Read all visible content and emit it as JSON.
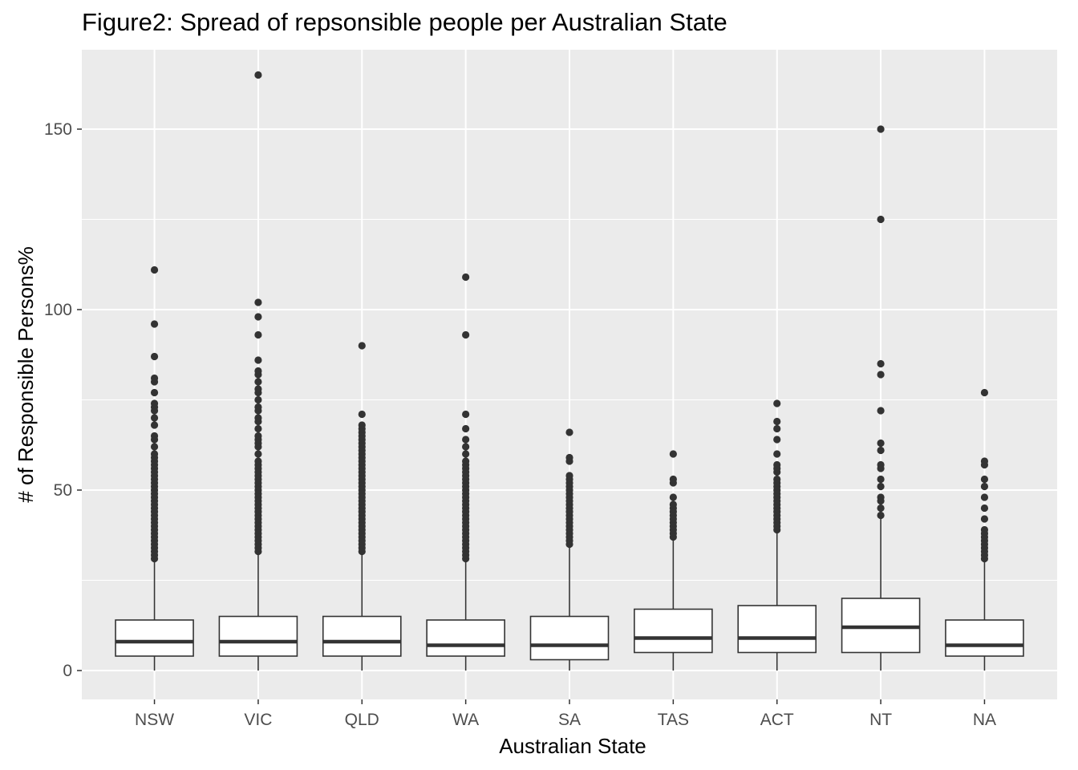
{
  "chart_data": {
    "type": "boxplot",
    "title": "Figure2: Spread of repsonsible people per Australian State",
    "xlabel": "Australian State",
    "ylabel": "# of Responsible Persons%",
    "ylim": [
      -8,
      172
    ],
    "yticks": [
      0,
      50,
      100,
      150
    ],
    "grid": true,
    "legend": "none",
    "categories": [
      "NSW",
      "VIC",
      "QLD",
      "WA",
      "SA",
      "TAS",
      "ACT",
      "NT",
      "NA"
    ],
    "boxes": [
      {
        "category": "NSW",
        "whisker_low": 0,
        "q1": 4,
        "median": 8,
        "q3": 14,
        "whisker_high": 30,
        "outliers": [
          31,
          32,
          33,
          34,
          35,
          36,
          37,
          38,
          39,
          40,
          41,
          42,
          43,
          44,
          45,
          46,
          47,
          48,
          49,
          50,
          51,
          52,
          53,
          54,
          55,
          56,
          57,
          58,
          59,
          60,
          62,
          64,
          65,
          68,
          70,
          72,
          73,
          74,
          77,
          80,
          81,
          87,
          96,
          111
        ]
      },
      {
        "category": "VIC",
        "whisker_low": 0,
        "q1": 4,
        "median": 8,
        "q3": 15,
        "whisker_high": 32,
        "outliers": [
          33,
          34,
          35,
          36,
          37,
          38,
          39,
          40,
          41,
          42,
          43,
          44,
          45,
          46,
          47,
          48,
          49,
          50,
          51,
          52,
          53,
          54,
          55,
          56,
          57,
          58,
          60,
          62,
          63,
          64,
          65,
          67,
          69,
          70,
          72,
          73,
          75,
          77,
          78,
          80,
          82,
          83,
          86,
          93,
          98,
          102,
          165
        ]
      },
      {
        "category": "QLD",
        "whisker_low": 0,
        "q1": 4,
        "median": 8,
        "q3": 15,
        "whisker_high": 32,
        "outliers": [
          33,
          34,
          35,
          36,
          37,
          38,
          39,
          40,
          41,
          42,
          43,
          44,
          45,
          46,
          47,
          48,
          49,
          50,
          51,
          52,
          53,
          54,
          55,
          56,
          57,
          58,
          59,
          60,
          61,
          62,
          63,
          64,
          65,
          66,
          67,
          68,
          71,
          90
        ]
      },
      {
        "category": "WA",
        "whisker_low": 0,
        "q1": 4,
        "median": 7,
        "q3": 14,
        "whisker_high": 30,
        "outliers": [
          31,
          32,
          33,
          34,
          35,
          36,
          37,
          38,
          39,
          40,
          41,
          42,
          43,
          44,
          45,
          46,
          47,
          48,
          49,
          50,
          51,
          52,
          53,
          54,
          55,
          56,
          57,
          58,
          60,
          62,
          64,
          67,
          71,
          93,
          109
        ]
      },
      {
        "category": "SA",
        "whisker_low": 0,
        "q1": 3,
        "median": 7,
        "q3": 15,
        "whisker_high": 34,
        "outliers": [
          35,
          36,
          37,
          38,
          39,
          40,
          41,
          42,
          43,
          44,
          45,
          46,
          47,
          48,
          49,
          50,
          51,
          52,
          53,
          54,
          58,
          59,
          66
        ]
      },
      {
        "category": "TAS",
        "whisker_low": 0,
        "q1": 5,
        "median": 9,
        "q3": 17,
        "whisker_high": 36,
        "outliers": [
          37,
          38,
          39,
          40,
          41,
          42,
          43,
          44,
          45,
          46,
          48,
          52,
          53,
          60
        ]
      },
      {
        "category": "ACT",
        "whisker_low": 0,
        "q1": 5,
        "median": 9,
        "q3": 18,
        "whisker_high": 38,
        "outliers": [
          39,
          40,
          41,
          42,
          43,
          44,
          45,
          46,
          47,
          48,
          49,
          50,
          51,
          52,
          53,
          55,
          56,
          57,
          60,
          64,
          67,
          69,
          74
        ]
      },
      {
        "category": "NT",
        "whisker_low": 0,
        "q1": 5,
        "median": 12,
        "q3": 20,
        "whisker_high": 42,
        "outliers": [
          43,
          45,
          47,
          48,
          51,
          53,
          56,
          57,
          61,
          63,
          72,
          82,
          85,
          125,
          150
        ]
      },
      {
        "category": "NA",
        "whisker_low": 0,
        "q1": 4,
        "median": 7,
        "q3": 14,
        "whisker_high": 30,
        "outliers": [
          31,
          32,
          33,
          34,
          35,
          36,
          37,
          38,
          39,
          42,
          45,
          48,
          51,
          53,
          57,
          58,
          77
        ]
      }
    ]
  }
}
